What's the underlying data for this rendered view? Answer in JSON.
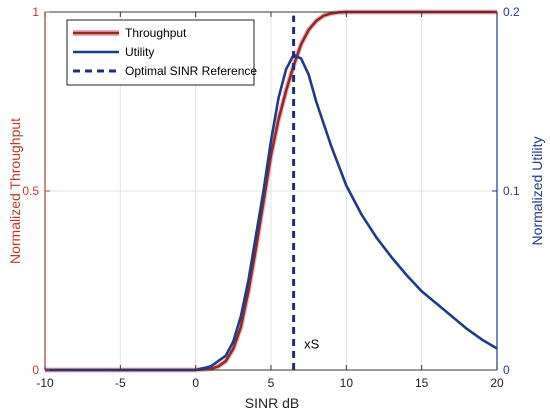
{
  "chart_data": {
    "type": "line",
    "xlabel": "SINR dB",
    "ylabel_left": "Normalized Throughput",
    "ylabel_right": "Normalized Utility",
    "xlim": [
      -10,
      20
    ],
    "ylim_left": [
      0,
      1
    ],
    "ylim_right": [
      0,
      0.2
    ],
    "x_ticks": [
      -10,
      -5,
      0,
      5,
      10,
      15,
      20
    ],
    "y_ticks_left": [
      0,
      0.5,
      1
    ],
    "y_ticks_left_labels": [
      "0",
      "0.5",
      "1"
    ],
    "y_ticks_right": [
      0,
      0.1,
      0.2
    ],
    "y_ticks_right_labels": [
      "0",
      "0.1",
      "0.2"
    ],
    "grid": true,
    "legend_position": "top-left",
    "series": [
      {
        "name": "Throughput",
        "axis": "left",
        "color": "#8B2E1A",
        "highlight_color": "#F2A6C8",
        "x": [
          -10,
          0,
          1,
          1.5,
          2,
          2.5,
          3,
          3.5,
          4,
          4.5,
          5,
          5.5,
          6,
          6.5,
          7,
          7.5,
          8,
          8.5,
          9,
          9.5,
          10,
          20
        ],
        "y": [
          0,
          0,
          0.003,
          0.01,
          0.025,
          0.06,
          0.12,
          0.22,
          0.34,
          0.47,
          0.6,
          0.7,
          0.78,
          0.85,
          0.91,
          0.95,
          0.975,
          0.99,
          0.996,
          0.999,
          1,
          1
        ]
      },
      {
        "name": "Utility",
        "axis": "right",
        "color": "#1F3A8A",
        "x": [
          -10,
          0,
          1,
          2,
          2.5,
          3,
          3.5,
          4,
          4.5,
          5,
          5.5,
          6,
          6.5,
          7,
          7.5,
          8,
          9,
          10,
          11,
          12,
          13,
          14,
          15,
          16,
          17,
          18,
          19,
          20
        ],
        "y": [
          0,
          0,
          0.002,
          0.008,
          0.016,
          0.03,
          0.05,
          0.075,
          0.1,
          0.128,
          0.152,
          0.168,
          0.176,
          0.174,
          0.165,
          0.15,
          0.125,
          0.103,
          0.087,
          0.074,
          0.063,
          0.053,
          0.044,
          0.037,
          0.03,
          0.023,
          0.017,
          0.012
        ]
      },
      {
        "name": "Optimal SINR Reference",
        "axis": "left",
        "color": "#1F2C7A",
        "style": "dashed",
        "x": [
          6.5,
          6.5
        ],
        "y": [
          0,
          0.99
        ]
      }
    ],
    "annotations": [
      {
        "text": "xS",
        "x": 7.2,
        "y": 0.06
      }
    ],
    "colors": {
      "left_axis": "#C0392B",
      "right_axis": "#1F3A8A",
      "grid": "#E3E3E3"
    }
  }
}
